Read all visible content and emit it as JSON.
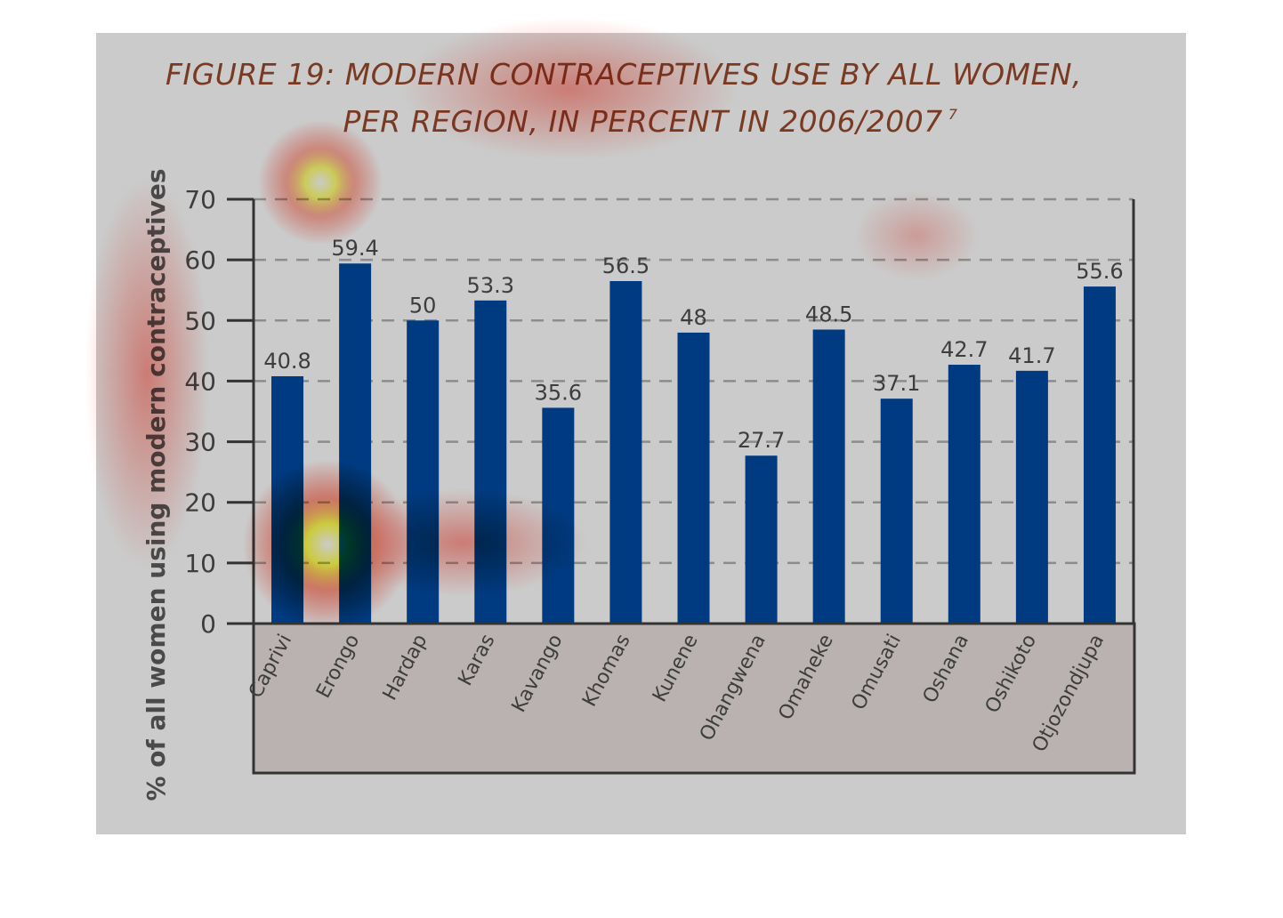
{
  "chart_data": {
    "type": "bar",
    "title_line1": "FIGURE 19: MODERN CONTRACEPTIVES USE BY ALL WOMEN,",
    "title_line2": "PER REGION, IN PERCENT IN 2006/2007",
    "title_footnote": "7",
    "xlabel": "",
    "ylabel": "% of all women using modern contraceptives",
    "categories": [
      "Caprivi",
      "Erongo",
      "Hardap",
      "Karas",
      "Kavango",
      "Khomas",
      "Kunene",
      "Ohangwena",
      "Omaheke",
      "Omusati",
      "Oshana",
      "Oshikoto",
      "Otjozondjupa"
    ],
    "values": [
      40.8,
      59.4,
      50,
      53.3,
      35.6,
      56.5,
      48,
      27.7,
      48.5,
      37.1,
      42.7,
      41.7,
      55.6
    ],
    "data_labels": [
      "40.8",
      "59.4",
      "50",
      "53.3",
      "35.6",
      "56.5",
      "48",
      "27.7",
      "48.5",
      "37.1",
      "42.7",
      "41.7",
      "55.6"
    ],
    "yticks": [
      "0",
      "10",
      "20",
      "30",
      "40",
      "50",
      "60",
      "70"
    ],
    "ylim": [
      0,
      70
    ],
    "grid": true,
    "legend": "none",
    "bar_color": "#003a80",
    "background_color": "#cbcbcb",
    "title_color": "#7a3a22"
  }
}
